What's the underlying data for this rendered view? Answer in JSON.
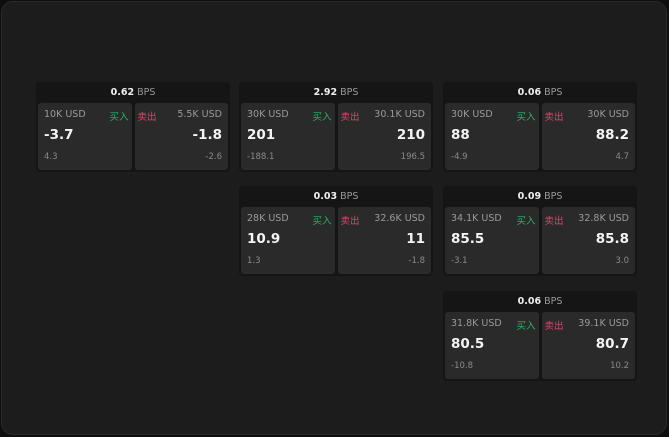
{
  "unit": "BPS",
  "buy_label": "买入",
  "sell_label": "卖出",
  "colors": {
    "buy": "#2db06a",
    "sell": "#e0436d"
  },
  "cards": [
    {
      "spread": "0.62",
      "buy": {
        "size": "10K USD",
        "price": "-3.7",
        "change": "4.3"
      },
      "sell": {
        "size": "5.5K USD",
        "price": "-1.8",
        "change": "-2.6"
      }
    },
    {
      "spread": "2.92",
      "buy": {
        "size": "30K USD",
        "price": "201",
        "change": "-188.1"
      },
      "sell": {
        "size": "30.1K USD",
        "price": "210",
        "change": "196.5"
      }
    },
    {
      "spread": "0.06",
      "buy": {
        "size": "30K USD",
        "price": "88",
        "change": "-4.9"
      },
      "sell": {
        "size": "30K USD",
        "price": "88.2",
        "change": "4.7"
      }
    },
    {
      "spread": "0.03",
      "buy": {
        "size": "28K USD",
        "price": "10.9",
        "change": "1.3"
      },
      "sell": {
        "size": "32.6K USD",
        "price": "11",
        "change": "-1.8"
      }
    },
    {
      "spread": "0.09",
      "buy": {
        "size": "34.1K USD",
        "price": "85.5",
        "change": "-3.1"
      },
      "sell": {
        "size": "32.8K USD",
        "price": "85.8",
        "change": "3.0"
      }
    },
    {
      "spread": "0.06",
      "buy": {
        "size": "31.8K USD",
        "price": "80.5",
        "change": "-10.8"
      },
      "sell": {
        "size": "39.1K USD",
        "price": "80.7",
        "change": "10.2"
      }
    }
  ]
}
